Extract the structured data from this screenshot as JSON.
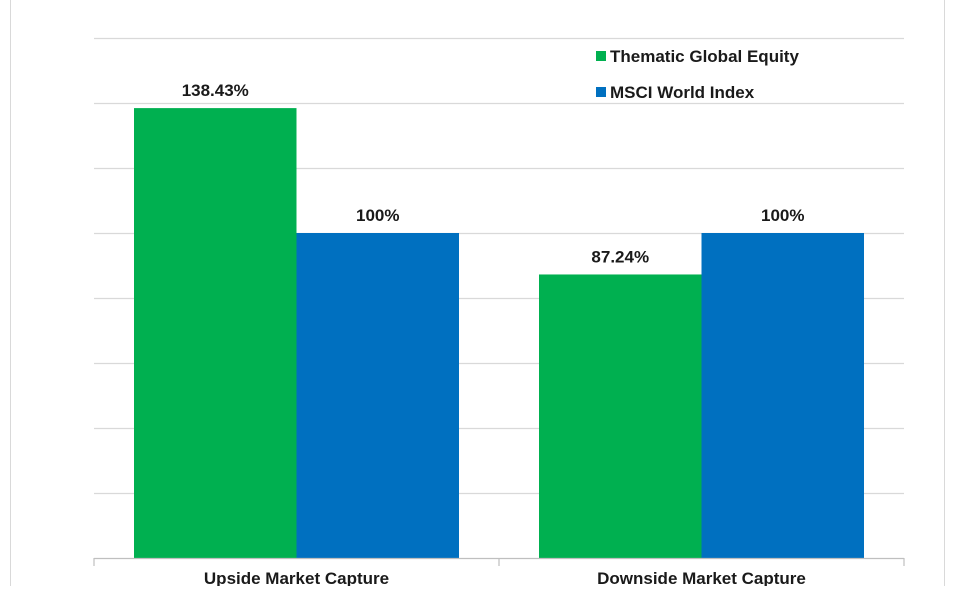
{
  "chart_data": {
    "type": "bar",
    "categories": [
      "Upside Market Capture",
      "Downside Market Capture"
    ],
    "series": [
      {
        "name": "Thematic Global Equity",
        "values": [
          138.43,
          87.24
        ],
        "labels": [
          "138.43%",
          "87.24%"
        ],
        "color": "#00b050"
      },
      {
        "name": "MSCI World Index",
        "values": [
          100,
          100
        ],
        "labels": [
          "100%",
          "100%"
        ],
        "color": "#0070c0"
      }
    ],
    "ylim": [
      0,
      160
    ],
    "y_gridline_step": 20,
    "grid": true,
    "y_tick_labels_shown": false,
    "legend_position": "top-right",
    "gridline_color": "#d9d9d9",
    "title": "",
    "xlabel": "",
    "ylabel": ""
  }
}
